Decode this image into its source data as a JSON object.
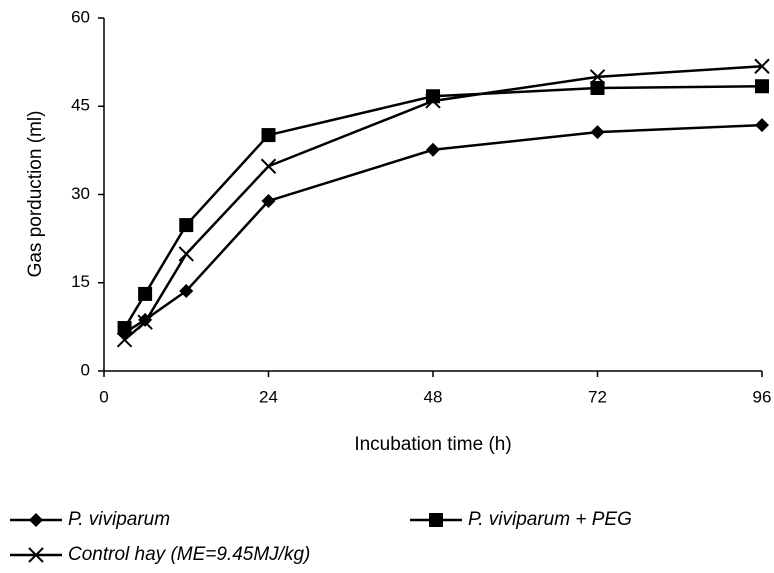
{
  "chart_data": {
    "type": "line",
    "x_label": "Incubation time (h)",
    "y_label": "Gas porduction (ml)",
    "x": [
      3,
      6,
      12,
      24,
      48,
      72,
      96
    ],
    "xlim": [
      0,
      96
    ],
    "xticks": [
      0,
      24,
      48,
      72,
      96
    ],
    "ylim": [
      0,
      60
    ],
    "yticks": [
      0,
      15,
      30,
      45,
      60
    ],
    "series": [
      {
        "name": "P. viviparum",
        "color": "#000000",
        "marker": "diamond",
        "values": [
          6.5,
          8.7,
          13.6,
          28.9,
          37.6,
          40.6,
          41.8
        ]
      },
      {
        "name": "P. viviparum + PEG",
        "color": "#000000",
        "marker": "square",
        "values": [
          7.3,
          13.1,
          24.8,
          40.1,
          46.7,
          48.1,
          48.4
        ]
      },
      {
        "name": "Control hay (ME=9.45MJ/kg)",
        "color": "#000000",
        "marker": "x",
        "values": [
          5.3,
          8.3,
          19.9,
          34.8,
          45.9,
          50.0,
          51.8
        ]
      }
    ]
  }
}
